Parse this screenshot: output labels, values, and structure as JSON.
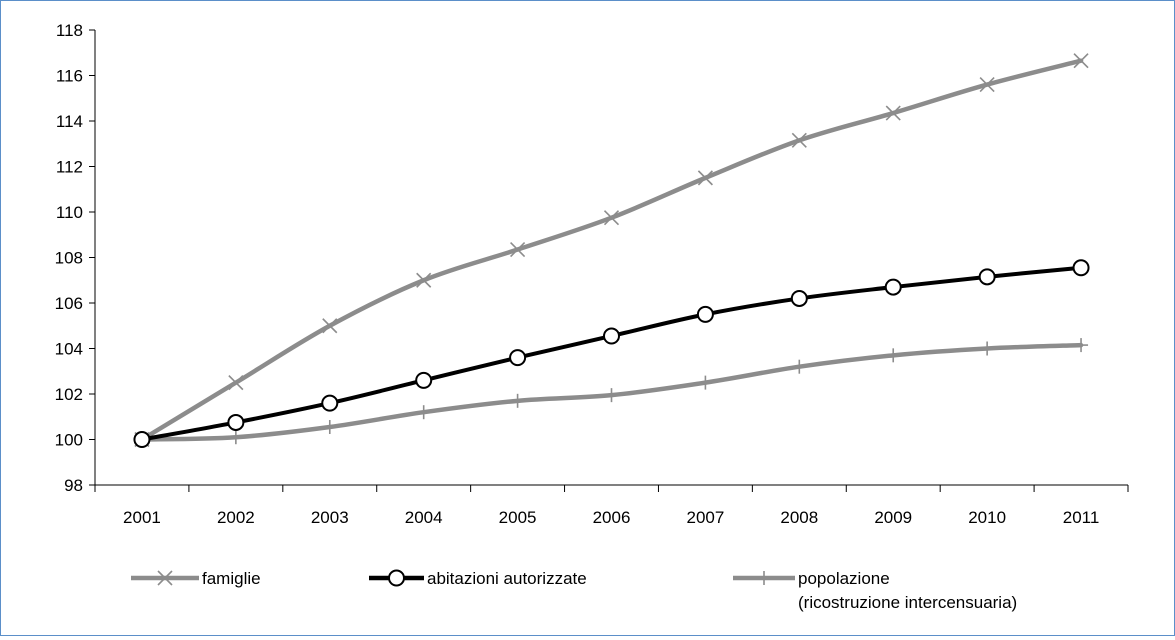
{
  "chart_data": {
    "type": "line",
    "title": "",
    "xlabel": "",
    "ylabel": "",
    "x": [
      "2001",
      "2002",
      "2003",
      "2004",
      "2005",
      "2006",
      "2007",
      "2008",
      "2009",
      "2010",
      "2011"
    ],
    "ylim": [
      98,
      118
    ],
    "yticks": [
      98,
      100,
      102,
      104,
      106,
      108,
      110,
      112,
      114,
      116,
      118
    ],
    "grid": false,
    "legend_position": "bottom",
    "series": [
      {
        "name": "famiglie",
        "color": "#8c8c8c",
        "marker": "x",
        "values": [
          100,
          102.5,
          105.0,
          107.0,
          108.35,
          109.75,
          111.5,
          113.15,
          114.35,
          115.6,
          116.65
        ]
      },
      {
        "name": "abitazioni autorizzate",
        "color": "#000000",
        "marker": "circle",
        "values": [
          100,
          100.75,
          101.6,
          102.6,
          103.6,
          104.55,
          105.5,
          106.2,
          106.7,
          107.15,
          107.55
        ]
      },
      {
        "name": "popolazione",
        "name_line2": "(ricostruzione intercensuaria)",
        "color": "#8c8c8c",
        "marker": "plus",
        "values": [
          100,
          100.1,
          100.55,
          101.2,
          101.7,
          101.95,
          102.5,
          103.2,
          103.7,
          104.0,
          104.15
        ]
      }
    ]
  }
}
